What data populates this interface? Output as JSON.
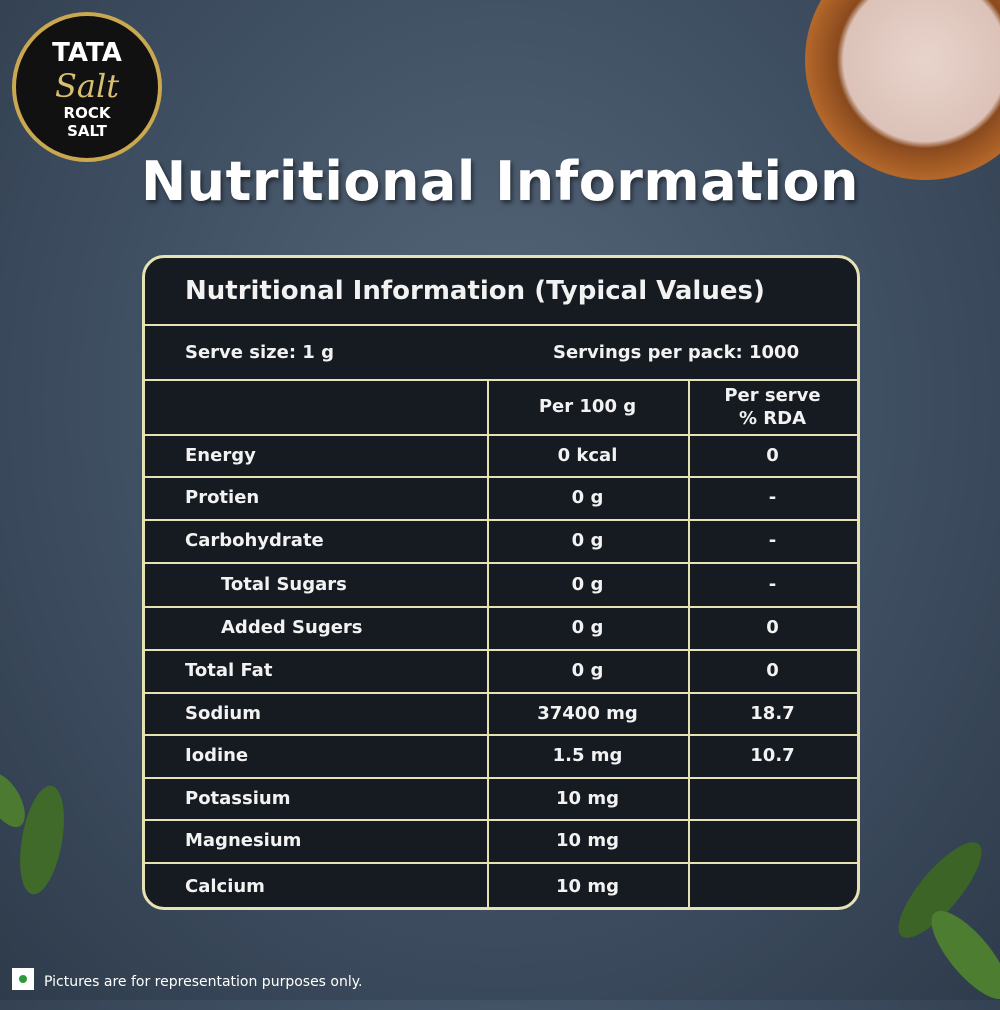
{
  "logo": {
    "brand": "TATA",
    "product": "Salt",
    "variant_line1": "ROCK",
    "variant_line2": "SALT"
  },
  "title": "Nutritional Information",
  "table": {
    "title": "Nutritional Information (Typical Values)",
    "serve_size": "Serve size: 1  g",
    "servings_per_pack": "Servings per pack: 1000",
    "header": {
      "per_100g": "Per 100 g",
      "rda_line1": "Per serve",
      "rda_line2": "% RDA"
    },
    "rows": [
      {
        "nutrient": "Energy",
        "per_100g": "0 kcal",
        "rda": "0"
      },
      {
        "nutrient": "Protien",
        "per_100g": "0 g",
        "rda": "-"
      },
      {
        "nutrient": "Carbohydrate",
        "per_100g": "0 g",
        "rda": "-"
      },
      {
        "nutrient": "Total Sugars",
        "per_100g": "0 g",
        "rda": "-",
        "indent": true
      },
      {
        "nutrient": "Added Sugers",
        "per_100g": "0 g",
        "rda": "0",
        "indent": true
      },
      {
        "nutrient": "Total Fat",
        "per_100g": "0 g",
        "rda": "0"
      },
      {
        "nutrient": "Sodium",
        "per_100g": "37400 mg",
        "rda": "18.7"
      },
      {
        "nutrient": "Iodine",
        "per_100g": "1.5 mg",
        "rda": "10.7"
      },
      {
        "nutrient": "Potassium",
        "per_100g": "10 mg"
      },
      {
        "nutrient": "Magnesium",
        "per_100g": "10 mg"
      },
      {
        "nutrient": "Calcium",
        "per_100g": "10 mg"
      }
    ]
  },
  "footer_note": "Pictures are for representation purposes only."
}
